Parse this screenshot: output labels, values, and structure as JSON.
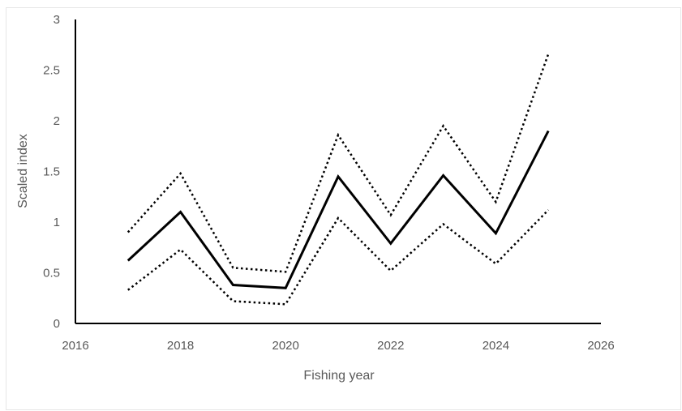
{
  "chart_data": {
    "type": "line",
    "title": "",
    "xlabel": "Fishing year",
    "ylabel": "Scaled index",
    "xlim": [
      2016,
      2026
    ],
    "ylim": [
      0,
      3
    ],
    "xticks": [
      2016,
      2018,
      2020,
      2022,
      2024,
      2026
    ],
    "yticks": [
      0,
      0.5,
      1,
      1.5,
      2,
      2.5,
      3
    ],
    "ytick_labels": [
      "0",
      "0.5",
      "1",
      "1.5",
      "2",
      "2.5",
      "3"
    ],
    "grid": false,
    "legend": "none",
    "x": [
      2017,
      2018,
      2019,
      2020,
      2021,
      2022,
      2023,
      2024,
      2025
    ],
    "series": [
      {
        "style": "solid",
        "color": "#000000",
        "values": [
          0.62,
          1.1,
          0.38,
          0.35,
          1.45,
          0.79,
          1.46,
          0.89,
          1.9
        ]
      },
      {
        "style": "dotted",
        "color": "#000000",
        "values": [
          0.9,
          1.48,
          0.55,
          0.51,
          1.86,
          1.07,
          1.95,
          1.2,
          2.66
        ]
      },
      {
        "style": "dotted",
        "color": "#000000",
        "values": [
          0.33,
          0.73,
          0.22,
          0.19,
          1.04,
          0.52,
          0.98,
          0.59,
          1.12
        ]
      }
    ]
  }
}
